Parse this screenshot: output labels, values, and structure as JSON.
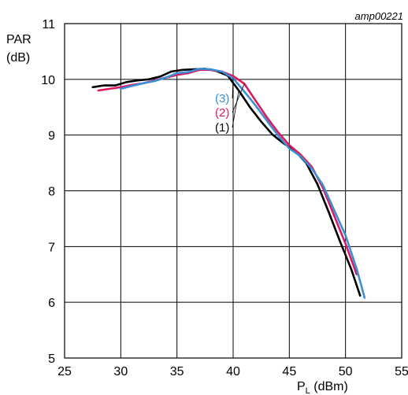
{
  "chart_data": {
    "type": "line",
    "reference": "amp00221",
    "ylabel_line1": "PAR",
    "ylabel_line2": "(dB)",
    "xlabel_main": "P",
    "xlabel_sub": "L",
    "xlabel_unit": " (dBm)",
    "xlim": [
      25,
      55
    ],
    "ylim": [
      5,
      11
    ],
    "xticks": [
      "25",
      "30",
      "35",
      "40",
      "45",
      "50",
      "55"
    ],
    "yticks": [
      "5",
      "6",
      "7",
      "8",
      "9",
      "10",
      "11"
    ],
    "grid": true,
    "series": [
      {
        "name": "(1)",
        "color": "#000000",
        "x": [
          27.5,
          28.5,
          29.5,
          30.5,
          31.5,
          32.5,
          33.5,
          34.5,
          35.5,
          36.5,
          37.5,
          38.5,
          39.5,
          40.5,
          41.5,
          42.5,
          43.5,
          44.5,
          45.5,
          46.5,
          47.5,
          48.5,
          49.5,
          50.5,
          51.3
        ],
        "y": [
          9.86,
          9.89,
          9.89,
          9.95,
          9.98,
          10.0,
          10.05,
          10.14,
          10.17,
          10.18,
          10.19,
          10.15,
          10.07,
          9.8,
          9.5,
          9.24,
          9.01,
          8.85,
          8.72,
          8.5,
          8.12,
          7.62,
          7.1,
          6.6,
          6.12
        ]
      },
      {
        "name": "(2)",
        "color": "#e0185c",
        "x": [
          28.0,
          29.0,
          30.0,
          31.0,
          32.0,
          33.0,
          34.0,
          35.0,
          36.0,
          37.0,
          38.0,
          39.0,
          40.0,
          41.0,
          42.0,
          43.0,
          44.0,
          45.0,
          46.0,
          47.0,
          48.0,
          49.0,
          50.0,
          51.0
        ],
        "y": [
          9.8,
          9.83,
          9.86,
          9.9,
          9.93,
          9.98,
          10.03,
          10.08,
          10.11,
          10.17,
          10.17,
          10.14,
          10.06,
          9.92,
          9.62,
          9.32,
          9.05,
          8.82,
          8.65,
          8.43,
          8.05,
          7.55,
          7.05,
          6.5
        ]
      },
      {
        "name": "(3)",
        "color": "#3a8fd6",
        "x": [
          30.0,
          31.0,
          32.0,
          33.0,
          34.0,
          35.0,
          36.0,
          37.0,
          38.0,
          39.0,
          40.0,
          41.0,
          42.0,
          43.0,
          44.0,
          45.0,
          46.0,
          47.0,
          48.0,
          49.0,
          50.0,
          51.0,
          51.7
        ],
        "y": [
          9.83,
          9.88,
          9.93,
          9.97,
          10.03,
          10.11,
          10.13,
          10.19,
          10.18,
          10.14,
          10.02,
          9.78,
          9.53,
          9.26,
          8.99,
          8.76,
          8.62,
          8.4,
          8.1,
          7.65,
          7.2,
          6.6,
          6.08
        ]
      }
    ]
  }
}
